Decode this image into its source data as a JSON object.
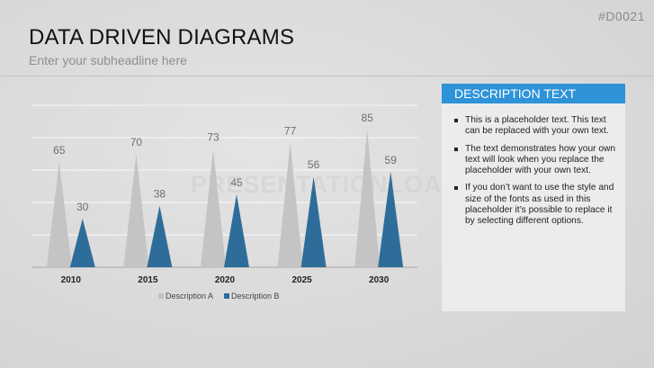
{
  "header": {
    "code": "#D0021",
    "title": "DATA DRIVEN DIAGRAMS",
    "subtitle": "Enter your subheadline here"
  },
  "watermark": "PRESENTATIONLOAD",
  "description": {
    "heading": "DESCRIPTION TEXT",
    "items": [
      "This is a placeholder text. This text can be replaced with your own text.",
      "The text demonstrates how your own text will look when you replace the placeholder with your own text.",
      "If you don’t want to use the style and size of the fonts as used in this placeholder it’s possible to replace it by selecting different options."
    ]
  },
  "chart_data": {
    "type": "bar",
    "categories": [
      "2010",
      "2015",
      "2020",
      "2025",
      "2030"
    ],
    "series": [
      {
        "name": "Description A",
        "values": [
          65,
          70,
          73,
          77,
          85
        ],
        "color": "#c4c4c4"
      },
      {
        "name": "Description B",
        "values": [
          30,
          38,
          45,
          56,
          59
        ],
        "color": "#2e6d99"
      }
    ],
    "ylim": [
      0,
      100
    ],
    "grid": true,
    "legend": "bottom",
    "mark_shape": "triangle"
  }
}
